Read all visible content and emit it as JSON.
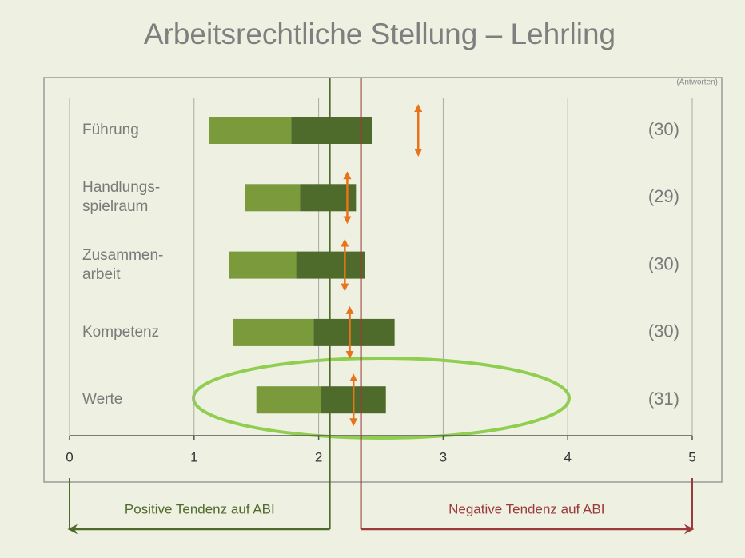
{
  "chart_data": {
    "type": "floating_bar",
    "title": "Arbeitsrechtliche Stellung – Lehrling",
    "note": "(Antworten)",
    "categories": [
      "Führung",
      "Handlungs-\nspielraum",
      "Zusammen-\narbeit",
      "Kompetenz",
      "Werte"
    ],
    "bar_start": [
      1.12,
      1.41,
      1.28,
      1.31,
      1.5
    ],
    "bar_mid": [
      1.78,
      1.85,
      1.82,
      1.96,
      2.02
    ],
    "bar_end": [
      2.43,
      2.3,
      2.37,
      2.61,
      2.54
    ],
    "colors": [
      "#7a9a3c",
      "#4f6b2b"
    ],
    "markers": [
      2.8,
      2.23,
      2.21,
      2.25,
      2.28
    ],
    "marker_color": "#e8731a",
    "counts": [
      "(30)",
      "(29)",
      "(30)",
      "(30)",
      "(31)"
    ],
    "xlim": [
      0,
      5
    ],
    "xticks": [
      0,
      1,
      2,
      3,
      4,
      5
    ],
    "grid": true,
    "reference_lines": [
      {
        "value": 2.09,
        "label": "Positive Tendenz auf ABI",
        "color": "#4f6b2b"
      },
      {
        "value": 2.34,
        "label": "Negative Tendenz auf ABI",
        "color": "#9b3a3a"
      }
    ]
  }
}
